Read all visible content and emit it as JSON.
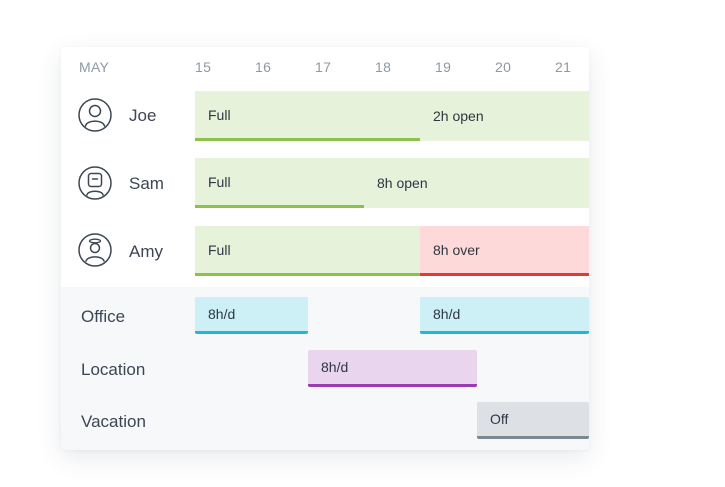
{
  "header": {
    "month": "MAY",
    "days": [
      "15",
      "16",
      "17",
      "18",
      "19",
      "20",
      "21"
    ]
  },
  "people": [
    {
      "name": "Joe",
      "icon": "person-icon"
    },
    {
      "name": "Sam",
      "icon": "robot-icon"
    },
    {
      "name": "Amy",
      "icon": "halo-person-icon"
    }
  ],
  "people_bars": [
    {
      "person": "Joe",
      "label": "Full",
      "status": "full"
    },
    {
      "person": "Joe",
      "label": "2h open",
      "status": "open"
    },
    {
      "person": "Sam",
      "label": "Full",
      "status": "full"
    },
    {
      "person": "Sam",
      "label": "8h open",
      "status": "open"
    },
    {
      "person": "Amy",
      "label": "Full",
      "status": "full"
    },
    {
      "person": "Amy",
      "label": "8h over",
      "status": "over"
    }
  ],
  "categories": [
    {
      "name": "Office"
    },
    {
      "name": "Location"
    },
    {
      "name": "Vacation"
    }
  ],
  "category_bars": [
    {
      "category": "Office",
      "label": "8h/d"
    },
    {
      "category": "Office",
      "label": "8h/d"
    },
    {
      "category": "Location",
      "label": "8h/d"
    },
    {
      "category": "Vacation",
      "label": "Off"
    }
  ],
  "colors": {
    "full_fill": "#e6f2da",
    "full_line": "#8bc34a",
    "over_fill": "#fdd9d9",
    "over_line": "#e53935",
    "office_fill": "#ccf0f5",
    "office_line": "#26b5d2",
    "location_fill": "#ead5ee",
    "location_line": "#9c3ab3",
    "vacation_fill": "#dde1e5",
    "vacation_line": "#7b8791"
  }
}
